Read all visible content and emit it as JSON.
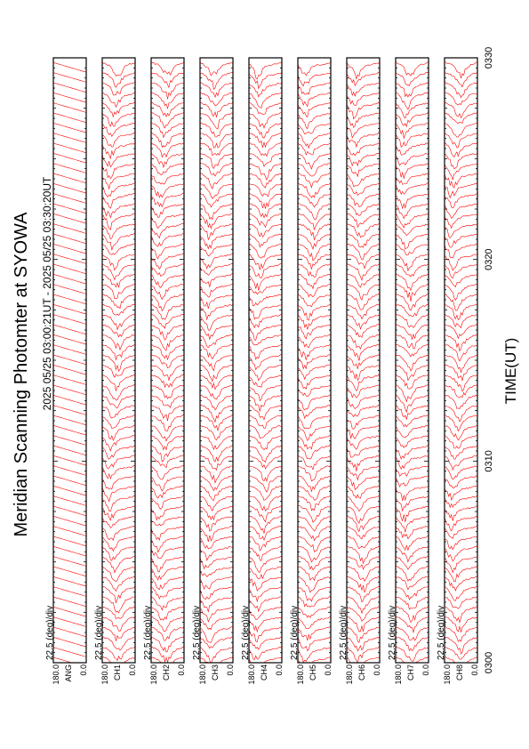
{
  "page": {
    "title": "Meridian Scanning Photomter at SYOWA",
    "time_range": "2025 05/25 03:00:21UT - 2025 05/25 03:30:20UT",
    "xlabel": "TIME(UT)",
    "scale_label": "22.5 (deg)/div",
    "ytick_top": "180.0",
    "ytick_bottom": "0.0"
  },
  "colors": {
    "trace": "#ff0000",
    "axes": "#000000",
    "background": "#ffffff"
  },
  "chart_data": {
    "type": "line",
    "orientation": "rotated-90-ccw",
    "xlabel": "TIME(UT)",
    "x_ticks": [
      "0300",
      "0310",
      "0320",
      "0330"
    ],
    "xlim": [
      "0300",
      "0330"
    ],
    "ylim": [
      0.0,
      180.0
    ],
    "scale": "22.5 (deg)/div",
    "grid": false,
    "scans_per_panel": 60,
    "panels": [
      {
        "channel": "ANG",
        "label": "ANG",
        "trace_kind": "sawtooth"
      },
      {
        "channel": "CH1",
        "label": "CH1",
        "trace_kind": "photometer"
      },
      {
        "channel": "CH2",
        "label": "CH2",
        "trace_kind": "photometer"
      },
      {
        "channel": "CH3",
        "label": "CH3",
        "trace_kind": "photometer"
      },
      {
        "channel": "CH4",
        "label": "CH4",
        "trace_kind": "photometer"
      },
      {
        "channel": "CH5",
        "label": "CH5",
        "trace_kind": "photometer"
      },
      {
        "channel": "CH6",
        "label": "CH6",
        "trace_kind": "photometer"
      },
      {
        "channel": "CH7",
        "label": "CH7",
        "trace_kind": "photometer"
      },
      {
        "channel": "CH8",
        "label": "CH8",
        "trace_kind": "photometer"
      }
    ]
  }
}
